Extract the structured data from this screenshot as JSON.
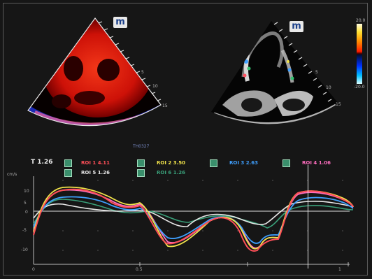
{
  "top_view": {
    "left_badge": "m",
    "right_badge": "m",
    "left_depth_ticks": [
      "5",
      "10",
      "15"
    ],
    "right_depth_ticks": [
      "5",
      "10",
      "15"
    ]
  },
  "colorbar": {
    "top_label": "20.0",
    "bottom_label": "-20.0"
  },
  "timeline": {
    "label": "TH0327"
  },
  "roi_panel": {
    "time_marker": "T 1.26",
    "rois": [
      {
        "label": "ROI 1  4.11",
        "color": "#ff4f58"
      },
      {
        "label": "ROI 2  3.50",
        "color": "#f0e24a"
      },
      {
        "label": "ROI 3  2.63",
        "color": "#3fa0ff"
      },
      {
        "label": "ROI 4  1.06",
        "color": "#ff6ec0"
      },
      {
        "label": "ROI 5  1.26",
        "color": "#e8e8e8"
      },
      {
        "label": "ROI 6  1.26",
        "color": "#3aa07a"
      }
    ]
  },
  "graph": {
    "y_unit": "cm/s",
    "y_ticks": [
      "10",
      "5",
      "0",
      "-5",
      "-10"
    ],
    "x_ticks": [
      "0",
      "0.5",
      "1"
    ],
    "cursor_value": 1.26
  }
}
